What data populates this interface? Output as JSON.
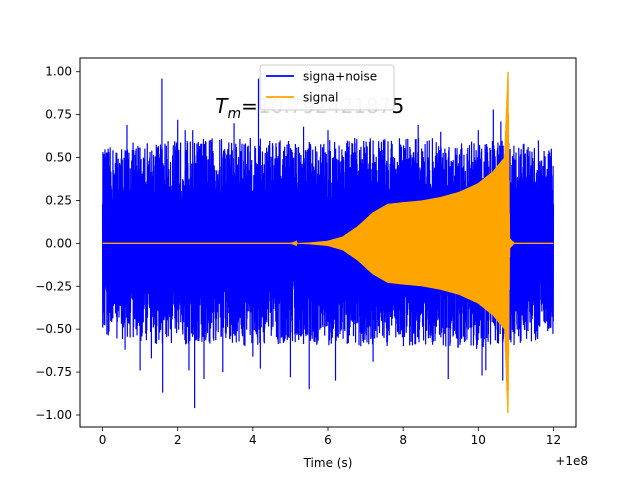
{
  "chart_data": {
    "type": "line",
    "xlabel": "Time (s)",
    "ylabel": "",
    "x_offset_label": "+1e8",
    "xlim": [
      -0.6,
      12.6
    ],
    "ylim": [
      -1.07,
      1.08
    ],
    "x_ticks": [
      0,
      2,
      4,
      6,
      8,
      10,
      12
    ],
    "x_tick_labels": [
      "0",
      "2",
      "4",
      "6",
      "8",
      "10",
      "12"
    ],
    "y_ticks": [
      -1.0,
      -0.75,
      -0.5,
      -0.25,
      0.0,
      0.25,
      0.5,
      0.75,
      1.0
    ],
    "y_tick_labels": [
      "−1.00",
      "−0.75",
      "−0.50",
      "−0.25",
      "0.00",
      "0.25",
      "0.50",
      "0.75",
      "1.00"
    ],
    "annotation": {
      "prefix_main": "T",
      "prefix_sub": "m",
      "equals": "=",
      "value_faded": "10.79242187",
      "value_last": "5",
      "x": 3.0,
      "y": 0.8
    },
    "legend_position": "upper center",
    "series": [
      {
        "name": "signa+noise",
        "color": "#0000ff",
        "x_range": [
          0,
          12
        ],
        "envelope_upper": [
          [
            0.0,
            0.55
          ],
          [
            1.0,
            0.6
          ],
          [
            2.0,
            0.6
          ],
          [
            3.0,
            0.62
          ],
          [
            4.0,
            0.62
          ],
          [
            5.0,
            0.6
          ],
          [
            6.0,
            0.6
          ],
          [
            7.0,
            0.62
          ],
          [
            8.0,
            0.62
          ],
          [
            9.0,
            0.62
          ],
          [
            10.0,
            0.6
          ],
          [
            10.8,
            0.6
          ],
          [
            12.0,
            0.55
          ]
        ],
        "envelope_lower": [
          [
            0.0,
            -0.55
          ],
          [
            1.0,
            -0.58
          ],
          [
            2.0,
            -0.6
          ],
          [
            3.0,
            -0.6
          ],
          [
            4.0,
            -0.6
          ],
          [
            5.0,
            -0.58
          ],
          [
            6.0,
            -0.6
          ],
          [
            7.0,
            -0.6
          ],
          [
            8.0,
            -0.6
          ],
          [
            9.0,
            -0.6
          ],
          [
            10.0,
            -0.62
          ],
          [
            10.8,
            -0.6
          ],
          [
            12.0,
            -0.55
          ]
        ],
        "spikes": [
          [
            0.6,
            -0.62
          ],
          [
            0.65,
            0.69
          ],
          [
            1.0,
            -0.74
          ],
          [
            1.3,
            -0.67
          ],
          [
            1.58,
            0.96
          ],
          [
            1.6,
            -0.87
          ],
          [
            2.0,
            0.72
          ],
          [
            2.2,
            0.66
          ],
          [
            2.3,
            -0.74
          ],
          [
            2.4,
            0.66
          ],
          [
            2.45,
            -0.96
          ],
          [
            2.7,
            -0.79
          ],
          [
            3.2,
            -0.75
          ],
          [
            3.5,
            0.7
          ],
          [
            4.0,
            -0.66
          ],
          [
            4.15,
            0.96
          ],
          [
            4.2,
            -0.73
          ],
          [
            5.0,
            -0.78
          ],
          [
            5.35,
            0.68
          ],
          [
            5.5,
            -0.85
          ],
          [
            6.0,
            0.66
          ],
          [
            6.2,
            -0.8
          ],
          [
            7.2,
            -0.69
          ],
          [
            8.4,
            0.69
          ],
          [
            9.0,
            0.65
          ],
          [
            9.2,
            -0.79
          ],
          [
            10.0,
            0.66
          ],
          [
            10.1,
            -0.77
          ],
          [
            10.2,
            -0.74
          ],
          [
            10.4,
            0.78
          ],
          [
            10.6,
            0.71
          ],
          [
            10.65,
            -0.8
          ],
          [
            11.6,
            0.6
          ],
          [
            11.9,
            0.53
          ]
        ]
      },
      {
        "name": "signal",
        "color": "#ffa500",
        "x_range": [
          0,
          12
        ],
        "envelope": [
          [
            0.0,
            0.0
          ],
          [
            5.0,
            0.0
          ],
          [
            5.5,
            0.005
          ],
          [
            6.0,
            0.015
          ],
          [
            6.4,
            0.04
          ],
          [
            6.8,
            0.1
          ],
          [
            7.2,
            0.18
          ],
          [
            7.6,
            0.23
          ],
          [
            8.0,
            0.24
          ],
          [
            8.5,
            0.25
          ],
          [
            9.0,
            0.27
          ],
          [
            9.5,
            0.3
          ],
          [
            10.0,
            0.35
          ],
          [
            10.4,
            0.42
          ],
          [
            10.7,
            0.5
          ],
          [
            10.79,
            1.0
          ],
          [
            10.83,
            0.03
          ],
          [
            10.95,
            0.0
          ],
          [
            12.0,
            0.0
          ]
        ],
        "peak": {
          "x": 10.79,
          "max": 1.0,
          "min": -0.91
        }
      }
    ]
  }
}
